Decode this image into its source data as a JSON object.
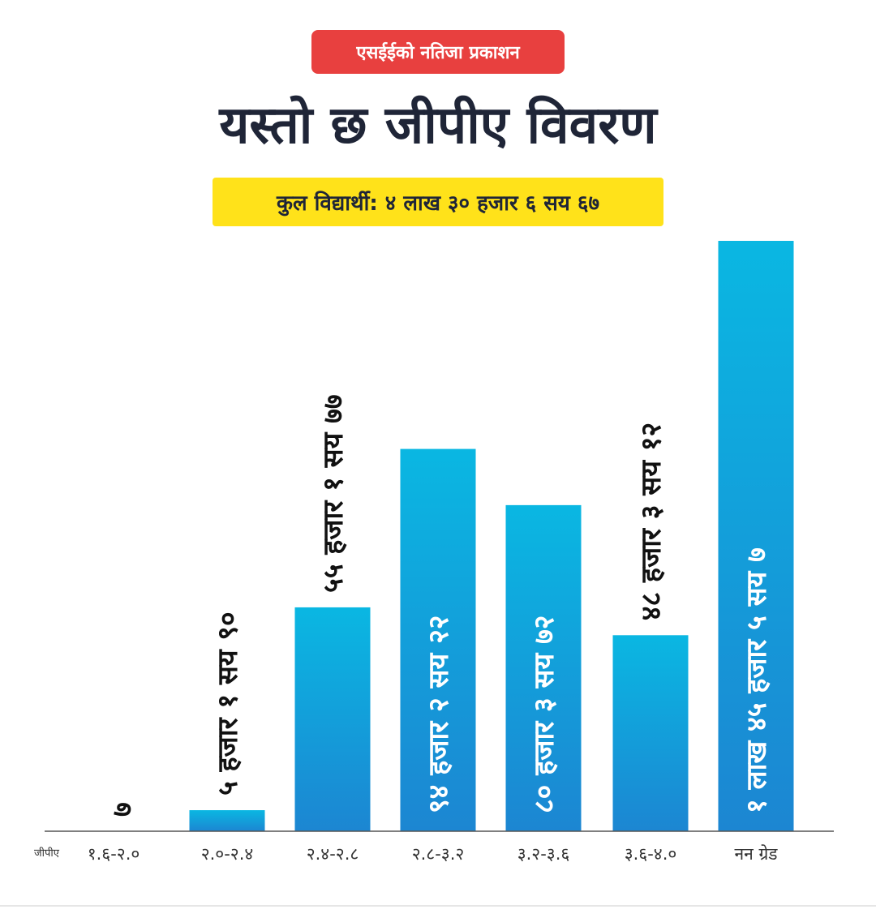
{
  "header": {
    "badge": "एसईईको नतिजा प्रकाशन",
    "title": "यस्तो छ जीपीए विवरण",
    "subtitle": "कुल विद्यार्थी: ४ लाख ३० हजार ६ सय ६७"
  },
  "colors": {
    "badge_bg": "#e8403f",
    "subtitle_bg": "#ffe21a",
    "bar_top": "#0ab7e2",
    "bar_bottom": "#1c86d2",
    "label_on_bar": "#ffffff",
    "label_above_bar": "#111111",
    "title_text": "#1f2537"
  },
  "chart_data": {
    "type": "bar",
    "xlabel": "जीपीए",
    "categories": [
      "१.६-२.०",
      "२.०-२.४",
      "२.४-२.८",
      "२.८-३.२",
      "३.२-३.६",
      "३.६-४.०",
      "नन ग्रेड"
    ],
    "values": [
      7,
      5190,
      55177,
      94222,
      80372,
      48312,
      145507
    ],
    "data_labels": [
      "७",
      "५ हजार १ सय ९०",
      "५५ हजार १ सय ७७",
      "९४ हजार २ सय २२",
      "८० हजार ३ सय ७२",
      "४८ हजार ३ सय १२",
      "१ लाख ४५ हजार ५ सय ७"
    ],
    "label_inside": [
      false,
      false,
      false,
      true,
      true,
      false,
      true
    ],
    "ylim": [
      0,
      145507
    ],
    "grid": false,
    "legend": "none"
  }
}
